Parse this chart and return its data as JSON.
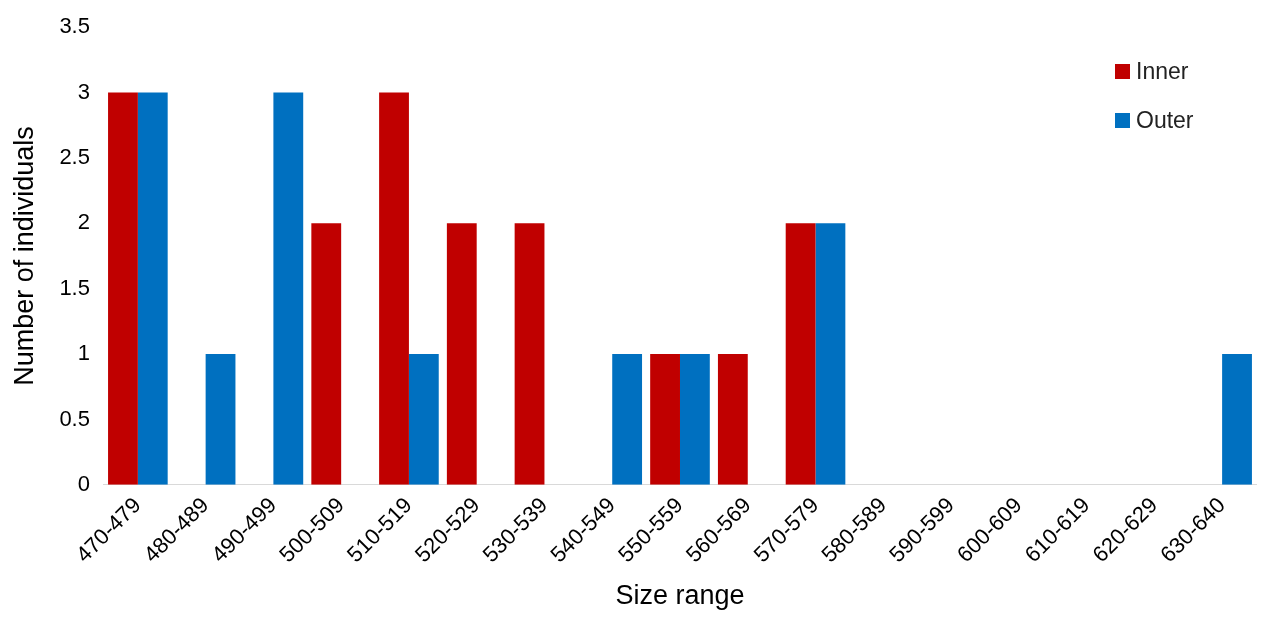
{
  "chart_data": {
    "type": "bar",
    "xlabel": "Size range",
    "ylabel": "Number of individuals",
    "categories": [
      "470-479",
      "480-489",
      "490-499",
      "500-509",
      "510-519",
      "520-529",
      "530-539",
      "540-549",
      "550-559",
      "560-569",
      "570-579",
      "580-589",
      "590-599",
      "600-609",
      "610-619",
      "620-629",
      "630-640"
    ],
    "series": [
      {
        "name": "Inner",
        "color": "#c00000",
        "values": [
          3,
          0,
          0,
          2,
          3,
          2,
          2,
          0,
          1,
          1,
          2,
          0,
          0,
          0,
          0,
          0,
          0
        ]
      },
      {
        "name": "Outer",
        "color": "#0070c0",
        "values": [
          3,
          1,
          3,
          0,
          1,
          0,
          0,
          1,
          1,
          0,
          2,
          0,
          0,
          0,
          0,
          0,
          1
        ]
      }
    ],
    "ylim": [
      0,
      3.5
    ],
    "yticks": [
      0,
      0.5,
      1,
      1.5,
      2,
      2.5,
      3,
      3.5
    ],
    "grid": false,
    "legend": "top right"
  }
}
